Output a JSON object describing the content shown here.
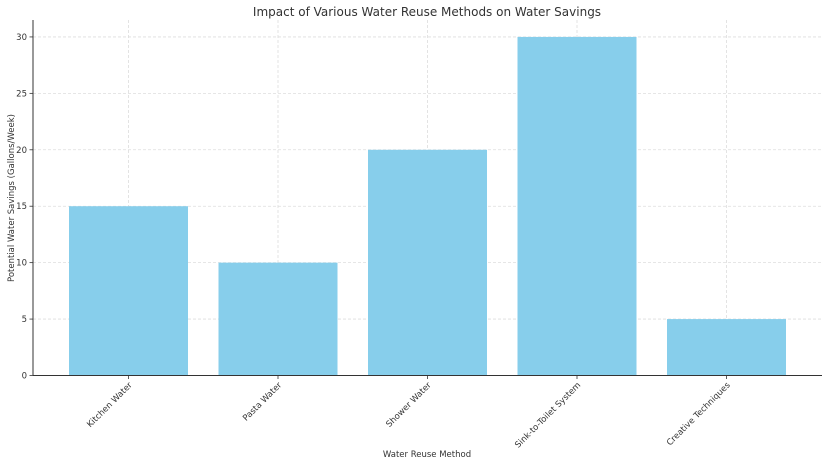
{
  "chart_data": {
    "type": "bar",
    "title": "Impact of Various Water Reuse Methods on Water Savings",
    "xlabel": "Water Reuse Method",
    "ylabel": "Potential Water Savings (Gallons/Week)",
    "categories": [
      "Kitchen Water",
      "Pasta Water",
      "Shower Water",
      "Sink-to-Toilet System",
      "Creative Techniques"
    ],
    "values": [
      15,
      10,
      20,
      30,
      5
    ],
    "ylim": [
      0,
      31.5
    ],
    "yticks": [
      0,
      5,
      10,
      15,
      20,
      25,
      30
    ],
    "grid": true,
    "legend": null,
    "bar_color": "#87ceeb",
    "x_tick_rotation": 45
  }
}
